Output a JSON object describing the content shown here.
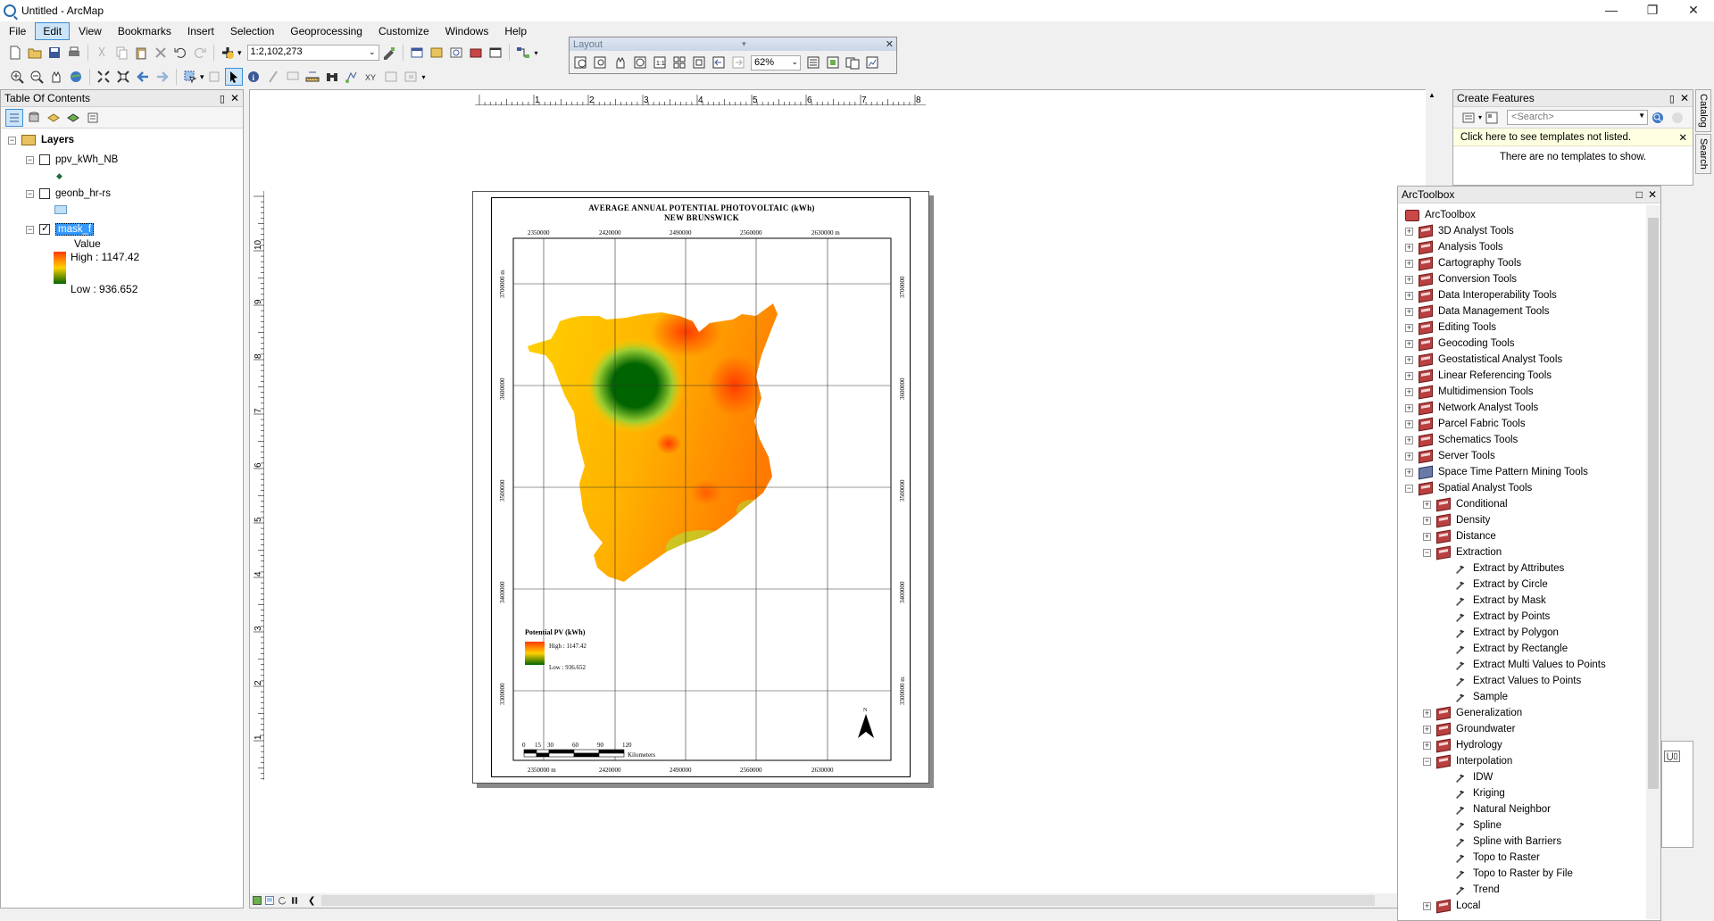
{
  "window": {
    "title": "Untitled - ArcMap"
  },
  "menu": [
    "File",
    "Edit",
    "View",
    "Bookmarks",
    "Insert",
    "Selection",
    "Geoprocessing",
    "Customize",
    "Windows",
    "Help"
  ],
  "menu_active": "Edit",
  "toolbar": {
    "scale": "1:2,102,273"
  },
  "layout_toolbar": {
    "title": "Layout",
    "zoom": "62%"
  },
  "toc": {
    "title": "Table Of Contents",
    "root": "Layers",
    "layers": [
      {
        "name": "ppv_kWh_NB",
        "checked": false
      },
      {
        "name": "geonb_hr-rs",
        "checked": false
      },
      {
        "name": "mask_f",
        "checked": true
      }
    ],
    "legend_field": "Value",
    "legend_high": "High : 1147.42",
    "legend_low": "Low : 936.652"
  },
  "ruler": {
    "h": [
      "1",
      "2",
      "3",
      "4",
      "5",
      "6",
      "7",
      "8"
    ],
    "v": [
      "10",
      "9",
      "8",
      "7",
      "6",
      "5",
      "4",
      "3",
      "2",
      "1"
    ]
  },
  "map": {
    "title_line1": "AVERAGE ANNUAL POTENTIAL PHOTOVOLTAIC (kWh)",
    "title_line2": "NEW BRUNSWICK",
    "x_ticks": [
      "2350000",
      "2420000",
      "2490000",
      "2560000",
      "2630000"
    ],
    "x_tick_unit": "m",
    "y_ticks": [
      "3700000",
      "3600000",
      "3500000",
      "3400000",
      "3300000"
    ],
    "y_tick_unit": "m",
    "legend_title": "Potential PV (kWh)",
    "legend_high": "High : 1147.42",
    "legend_low": "Low : 936.652",
    "scale_labels": [
      "0",
      "15",
      "30",
      "60",
      "90",
      "120"
    ],
    "scale_unit": "Kilometers",
    "north": "N",
    "colors": {
      "high": "#ff3b00",
      "mid": "#ffd200",
      "low": "#006400"
    }
  },
  "create_features": {
    "title": "Create Features",
    "search_placeholder": "<Search>",
    "notice": "Click here to see templates not listed.",
    "empty": "There are no templates to show."
  },
  "toolbox": {
    "title": "ArcToolbox",
    "root": "ArcToolbox",
    "items": [
      {
        "label": "3D Analyst Tools",
        "level": 1,
        "exp": "+",
        "icon": "toolbox-icon"
      },
      {
        "label": "Analysis Tools",
        "level": 1,
        "exp": "+",
        "icon": "toolbox-icon"
      },
      {
        "label": "Cartography Tools",
        "level": 1,
        "exp": "+",
        "icon": "toolbox-icon"
      },
      {
        "label": "Conversion Tools",
        "level": 1,
        "exp": "+",
        "icon": "toolbox-icon"
      },
      {
        "label": "Data Interoperability Tools",
        "level": 1,
        "exp": "+",
        "icon": "toolbox-icon"
      },
      {
        "label": "Data Management Tools",
        "level": 1,
        "exp": "+",
        "icon": "toolbox-icon"
      },
      {
        "label": "Editing Tools",
        "level": 1,
        "exp": "+",
        "icon": "toolbox-icon"
      },
      {
        "label": "Geocoding Tools",
        "level": 1,
        "exp": "+",
        "icon": "toolbox-icon"
      },
      {
        "label": "Geostatistical Analyst Tools",
        "level": 1,
        "exp": "+",
        "icon": "toolbox-icon"
      },
      {
        "label": "Linear Referencing Tools",
        "level": 1,
        "exp": "+",
        "icon": "toolbox-icon"
      },
      {
        "label": "Multidimension Tools",
        "level": 1,
        "exp": "+",
        "icon": "toolbox-icon"
      },
      {
        "label": "Network Analyst Tools",
        "level": 1,
        "exp": "+",
        "icon": "toolbox-icon"
      },
      {
        "label": "Parcel Fabric Tools",
        "level": 1,
        "exp": "+",
        "icon": "toolbox-icon"
      },
      {
        "label": "Schematics Tools",
        "level": 1,
        "exp": "+",
        "icon": "toolbox-icon"
      },
      {
        "label": "Server Tools",
        "level": 1,
        "exp": "+",
        "icon": "toolbox-icon"
      },
      {
        "label": "Space Time Pattern Mining Tools",
        "level": 1,
        "exp": "+",
        "icon": "toolbox-blue-icon"
      },
      {
        "label": "Spatial Analyst Tools",
        "level": 1,
        "exp": "−",
        "icon": "toolbox-icon"
      },
      {
        "label": "Conditional",
        "level": 2,
        "exp": "+",
        "icon": "toolset-icon"
      },
      {
        "label": "Density",
        "level": 2,
        "exp": "+",
        "icon": "toolset-icon"
      },
      {
        "label": "Distance",
        "level": 2,
        "exp": "+",
        "icon": "toolset-icon"
      },
      {
        "label": "Extraction",
        "level": 2,
        "exp": "−",
        "icon": "toolset-icon"
      },
      {
        "label": "Extract by Attributes",
        "level": 3,
        "exp": "",
        "icon": "hammer-icon"
      },
      {
        "label": "Extract by Circle",
        "level": 3,
        "exp": "",
        "icon": "hammer-icon"
      },
      {
        "label": "Extract by Mask",
        "level": 3,
        "exp": "",
        "icon": "hammer-icon"
      },
      {
        "label": "Extract by Points",
        "level": 3,
        "exp": "",
        "icon": "hammer-icon"
      },
      {
        "label": "Extract by Polygon",
        "level": 3,
        "exp": "",
        "icon": "hammer-icon"
      },
      {
        "label": "Extract by Rectangle",
        "level": 3,
        "exp": "",
        "icon": "hammer-icon"
      },
      {
        "label": "Extract Multi Values to Points",
        "level": 3,
        "exp": "",
        "icon": "hammer-icon"
      },
      {
        "label": "Extract Values to Points",
        "level": 3,
        "exp": "",
        "icon": "hammer-icon"
      },
      {
        "label": "Sample",
        "level": 3,
        "exp": "",
        "icon": "hammer-icon"
      },
      {
        "label": "Generalization",
        "level": 2,
        "exp": "+",
        "icon": "toolset-icon"
      },
      {
        "label": "Groundwater",
        "level": 2,
        "exp": "+",
        "icon": "toolset-icon"
      },
      {
        "label": "Hydrology",
        "level": 2,
        "exp": "+",
        "icon": "toolset-icon"
      },
      {
        "label": "Interpolation",
        "level": 2,
        "exp": "−",
        "icon": "toolset-icon"
      },
      {
        "label": "IDW",
        "level": 3,
        "exp": "",
        "icon": "hammer-icon"
      },
      {
        "label": "Kriging",
        "level": 3,
        "exp": "",
        "icon": "hammer-icon"
      },
      {
        "label": "Natural Neighbor",
        "level": 3,
        "exp": "",
        "icon": "hammer-icon"
      },
      {
        "label": "Spline",
        "level": 3,
        "exp": "",
        "icon": "hammer-icon"
      },
      {
        "label": "Spline with Barriers",
        "level": 3,
        "exp": "",
        "icon": "hammer-icon"
      },
      {
        "label": "Topo to Raster",
        "level": 3,
        "exp": "",
        "icon": "hammer-icon"
      },
      {
        "label": "Topo to Raster by File",
        "level": 3,
        "exp": "",
        "icon": "hammer-icon"
      },
      {
        "label": "Trend",
        "level": 3,
        "exp": "",
        "icon": "hammer-icon"
      },
      {
        "label": "Local",
        "level": 2,
        "exp": "+",
        "icon": "toolset-icon"
      }
    ]
  },
  "side_tabs": [
    "Catalog",
    "Search"
  ]
}
